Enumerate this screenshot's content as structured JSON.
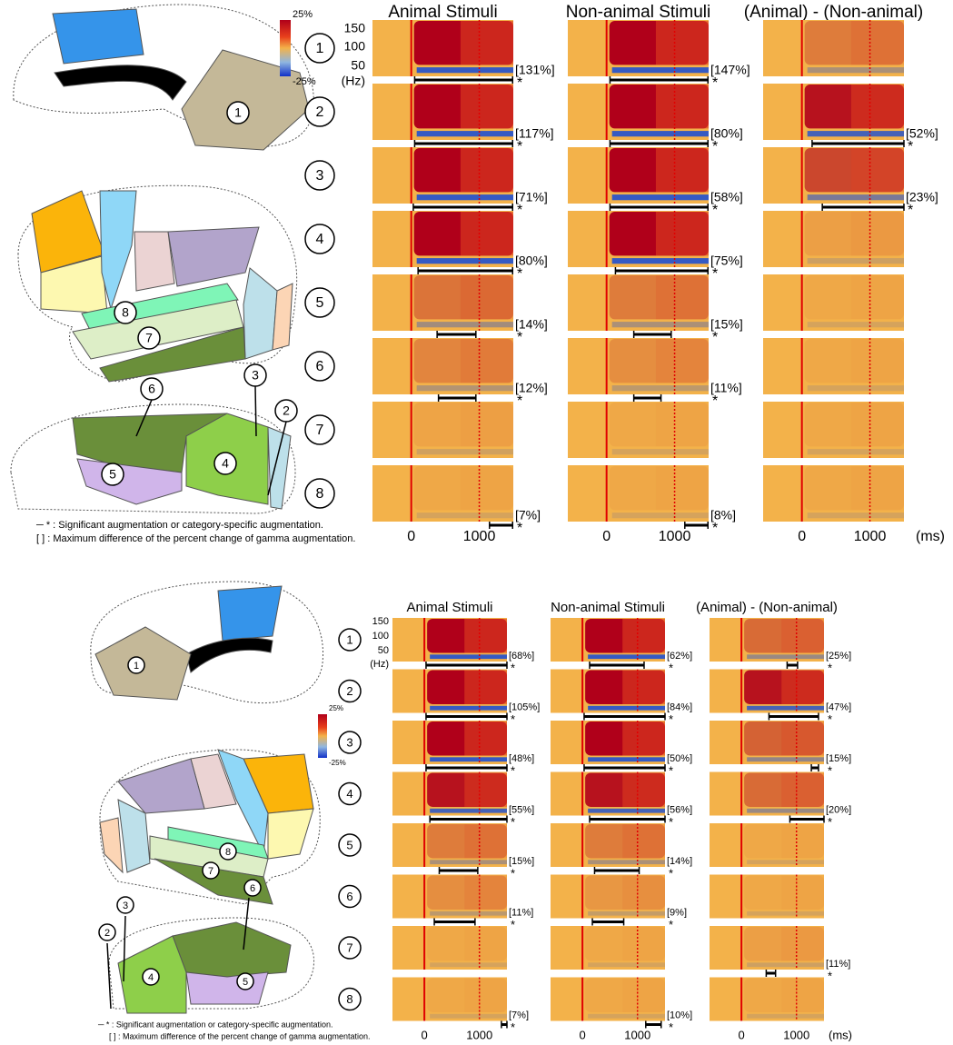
{
  "panels": [
    {
      "colorbar": {
        "max": "25%",
        "min": "-25%"
      },
      "freq_labels": [
        "150",
        "100",
        "50",
        "(Hz)"
      ],
      "columns": [
        "Animal Stimuli",
        "Non-animal Stimuli",
        "(Animal) - (Non-animal)"
      ],
      "rows": [
        "1",
        "2",
        "3",
        "4",
        "5",
        "6",
        "7",
        "8"
      ],
      "xlim": [
        -570,
        1500
      ],
      "xticks": [
        0,
        1000
      ],
      "x_unit": "(ms)",
      "brain_labels": [
        "1",
        "8",
        "7",
        "6",
        "3",
        "2",
        "5",
        "4"
      ],
      "notes": [
        "─ * : Significant augmentation or category-specific augmentation.",
        "[ ] : Maximum difference of the percent change of gamma augmentation."
      ],
      "cells": [
        [
          {
            "label": "[131%]",
            "sig": {
              "start": 50,
              "end": 1490,
              "label": "*"
            }
          },
          {
            "label": "[117%]",
            "sig": {
              "start": 50,
              "end": 1490,
              "label": "*"
            }
          },
          {
            "label": "[71%]",
            "sig": {
              "start": 30,
              "end": 1490,
              "label": "*"
            }
          },
          {
            "label": "[80%]",
            "sig": {
              "start": 100,
              "end": 1490,
              "label": "*"
            }
          },
          {
            "label": "[14%]",
            "sig": {
              "start": 380,
              "end": 950,
              "label": "*"
            }
          },
          {
            "label": "[12%]",
            "sig": {
              "start": 400,
              "end": 950,
              "label": "*"
            }
          },
          {},
          {
            "label": "[7%]",
            "sig": {
              "start": 1150,
              "end": 1490,
              "label": "*"
            }
          }
        ],
        [
          {
            "label": "[147%]",
            "sig": {
              "start": 50,
              "end": 1490,
              "label": "*"
            }
          },
          {
            "label": "[80%]",
            "sig": {
              "start": 50,
              "end": 1490,
              "label": "*"
            }
          },
          {
            "label": "[58%]",
            "sig": {
              "start": 50,
              "end": 1490,
              "label": "*"
            }
          },
          {
            "label": "[75%]",
            "sig": {
              "start": 130,
              "end": 1490,
              "label": "*"
            }
          },
          {
            "label": "[15%]",
            "sig": {
              "start": 400,
              "end": 950,
              "label": "*"
            }
          },
          {
            "label": "[11%]",
            "sig": {
              "start": 400,
              "end": 800,
              "label": "*"
            }
          },
          {},
          {
            "label": "[8%]",
            "sig": {
              "start": 1150,
              "end": 1490,
              "label": "*"
            }
          }
        ],
        [
          {},
          {
            "label": "[52%]",
            "sig": {
              "start": 150,
              "end": 1500,
              "label": "*"
            }
          },
          {
            "label": "[23%]",
            "sig": {
              "start": 300,
              "end": 1500,
              "label": "*"
            }
          },
          {},
          {},
          {},
          {},
          {}
        ]
      ]
    },
    {
      "colorbar": {
        "max": "25%",
        "min": "-25%"
      },
      "freq_labels": [
        "150",
        "100",
        "50",
        "(Hz)"
      ],
      "columns": [
        "Animal Stimuli",
        "Non-animal Stimuli",
        "(Animal) - (Non-animal)"
      ],
      "rows": [
        "1",
        "2",
        "3",
        "4",
        "5",
        "6",
        "7",
        "8"
      ],
      "xlim": [
        -580,
        1500
      ],
      "xticks": [
        0,
        1000
      ],
      "x_unit": "(ms)",
      "brain_labels": [
        "1",
        "8",
        "7",
        "6",
        "3",
        "2",
        "4",
        "5"
      ],
      "notes": [
        "─ * : Significant augmentation or category-specific augmentation.",
        "[ ] : Maximum difference of the percent change of gamma augmentation."
      ],
      "cells": [
        [
          {
            "label": "[68%]",
            "sig": {
              "start": 30,
              "end": 1500,
              "label": "*"
            }
          },
          {
            "label": "[105%]",
            "sig": {
              "start": 30,
              "end": 1500,
              "label": "*"
            }
          },
          {
            "label": "[48%]",
            "sig": {
              "start": 30,
              "end": 1500,
              "label": "*"
            }
          },
          {
            "label": "[55%]",
            "sig": {
              "start": 100,
              "end": 1500,
              "label": "*"
            }
          },
          {
            "label": "[15%]",
            "sig": {
              "start": 270,
              "end": 970,
              "label": "*"
            }
          },
          {
            "label": "[11%]",
            "sig": {
              "start": 180,
              "end": 920,
              "label": "*"
            }
          },
          {},
          {
            "label": "[7%]",
            "sig": {
              "start": 1400,
              "end": 1500,
              "label": "*"
            }
          }
        ],
        [
          {
            "label": "[62%]",
            "sig": {
              "start": 130,
              "end": 1120,
              "label": "*"
            }
          },
          {
            "label": "[84%]",
            "sig": {
              "start": 30,
              "end": 1500,
              "label": "*"
            }
          },
          {
            "label": "[50%]",
            "sig": {
              "start": 30,
              "end": 1500,
              "label": "*"
            }
          },
          {
            "label": "[56%]",
            "sig": {
              "start": 130,
              "end": 1500,
              "label": "*"
            }
          },
          {
            "label": "[14%]",
            "sig": {
              "start": 220,
              "end": 1030,
              "label": "*"
            }
          },
          {
            "label": "[9%]",
            "sig": {
              "start": 180,
              "end": 750,
              "label": "*"
            }
          },
          {},
          {
            "label": "[10%]",
            "sig": {
              "start": 1150,
              "end": 1430,
              "label": "*"
            }
          }
        ],
        [
          {
            "label": "[25%]",
            "sig": {
              "start": 830,
              "end": 1020,
              "label": "*"
            }
          },
          {
            "label": "[47%]",
            "sig": {
              "start": 500,
              "end": 1400,
              "label": "*"
            }
          },
          {
            "label": "[15%]",
            "sig": {
              "start": 1270,
              "end": 1400,
              "label": "*"
            }
          },
          {
            "label": "[20%]",
            "sig": {
              "start": 880,
              "end": 1500,
              "label": "*"
            }
          },
          {},
          {},
          {
            "label": "[11%]",
            "sig": {
              "start": 450,
              "end": 620,
              "label": "*"
            }
          },
          {}
        ]
      ]
    }
  ]
}
